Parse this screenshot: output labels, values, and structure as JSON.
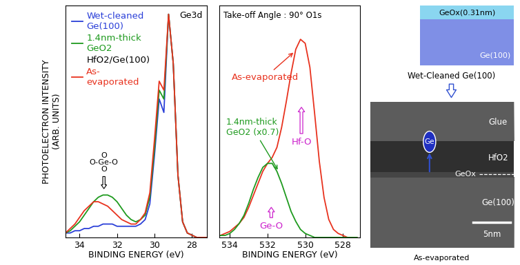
{
  "chart_data": [
    {
      "type": "line",
      "xlabel": "BINDING ENERGY (eV)",
      "ylabel": "PHOTOELECTRON INTENSITY\n(ARB. UNITS)",
      "x": [
        34.75,
        34.5,
        34.25,
        34.0,
        33.75,
        33.5,
        33.25,
        33.0,
        32.75,
        32.5,
        32.25,
        32.0,
        31.75,
        31.5,
        31.25,
        31.0,
        30.75,
        30.5,
        30.25,
        30.0,
        29.75,
        29.5,
        29.25,
        29.0,
        28.75,
        28.5,
        28.25,
        28.0,
        27.75,
        27.5,
        27.25,
        27.0
      ],
      "series": [
        {
          "name": "Wet-cleaned\nGe(100)",
          "color": "#2a3fd8",
          "values": [
            0.02,
            0.02,
            0.03,
            0.03,
            0.04,
            0.04,
            0.05,
            0.05,
            0.06,
            0.06,
            0.06,
            0.05,
            0.05,
            0.05,
            0.05,
            0.05,
            0.06,
            0.08,
            0.15,
            0.37,
            0.62,
            0.56,
            1.0,
            0.78,
            0.28,
            0.07,
            0.02,
            0.01,
            0.0,
            0.0,
            0.0,
            0.0
          ]
        },
        {
          "name": "1.4nm-thick\nGeO2",
          "color": "#1e9a1e",
          "values": [
            0.02,
            0.03,
            0.05,
            0.07,
            0.1,
            0.13,
            0.16,
            0.18,
            0.19,
            0.19,
            0.18,
            0.16,
            0.13,
            0.1,
            0.08,
            0.07,
            0.08,
            0.1,
            0.18,
            0.4,
            0.66,
            0.62,
            1.0,
            0.78,
            0.28,
            0.07,
            0.02,
            0.01,
            0.0,
            0.0,
            0.0,
            0.0
          ]
        },
        {
          "name": "As-\nevaporated",
          "color": "#e8321e",
          "values": [
            0.02,
            0.04,
            0.06,
            0.09,
            0.12,
            0.14,
            0.16,
            0.16,
            0.15,
            0.14,
            0.12,
            0.1,
            0.08,
            0.07,
            0.06,
            0.06,
            0.08,
            0.11,
            0.2,
            0.44,
            0.7,
            0.66,
            1.0,
            0.78,
            0.28,
            0.07,
            0.02,
            0.01,
            0.0,
            0.0,
            0.0,
            0.0
          ]
        }
      ],
      "xlim": [
        34.75,
        27.2
      ],
      "xticks": [
        34,
        32,
        30,
        28
      ],
      "ylim": [
        0,
        1.04
      ],
      "tick_labels": "x",
      "legend": "upper left",
      "annotations": [
        "Ge3d",
        "HfO2/Ge(100)",
        "O\nO-Ge-O\nO"
      ]
    },
    {
      "type": "line",
      "xlabel": "BINDING ENERGY (eV)",
      "x": [
        534.75,
        534.5,
        534.25,
        534.0,
        533.75,
        533.5,
        533.25,
        533.0,
        532.75,
        532.5,
        532.25,
        532.0,
        531.75,
        531.5,
        531.25,
        531.0,
        530.75,
        530.5,
        530.25,
        530.0,
        529.75,
        529.5,
        529.25,
        529.0,
        528.75,
        528.5,
        528.25,
        528.0,
        527.75,
        527.5,
        527.25
      ],
      "series": [
        {
          "name": "As-evaporated",
          "color": "#e8321e",
          "values": [
            0.01,
            0.01,
            0.02,
            0.03,
            0.05,
            0.07,
            0.1,
            0.15,
            0.21,
            0.27,
            0.33,
            0.37,
            0.4,
            0.45,
            0.55,
            0.68,
            0.82,
            0.94,
            0.99,
            0.97,
            0.85,
            0.62,
            0.38,
            0.2,
            0.09,
            0.04,
            0.02,
            0.01,
            0.0,
            0.0,
            0.0
          ]
        },
        {
          "name": "1.4nm-thick\nGeO2 (x0.7)",
          "color": "#1e9a1e",
          "values": [
            0.0,
            0.01,
            0.01,
            0.02,
            0.04,
            0.07,
            0.11,
            0.17,
            0.24,
            0.3,
            0.35,
            0.37,
            0.37,
            0.33,
            0.27,
            0.2,
            0.13,
            0.08,
            0.04,
            0.02,
            0.01,
            0.0,
            0.0,
            0.0,
            0.0,
            0.0,
            0.0,
            0.0,
            0.0,
            0.0,
            0.0
          ]
        }
      ],
      "xlim": [
        534.55,
        527.1
      ],
      "xticks": [
        534,
        532,
        530,
        528
      ],
      "ylim": [
        0,
        1.16
      ],
      "tick_labels": "x",
      "annotations": [
        "Take-off Angle : 90° O1s",
        "Hf-O",
        "Ge-O"
      ]
    }
  ],
  "diagram": {
    "schematic": {
      "layers": [
        "GeOx(0.31nm)",
        "Ge(100)"
      ],
      "caption": "Wet-Cleaned Ge(100)"
    },
    "tem_image": {
      "labels": [
        "Glue",
        "HfO2",
        "GeOx",
        "Ge(100)"
      ],
      "atom": "Ge",
      "scale_bar": "5nm",
      "caption": "As-evaporated"
    }
  }
}
